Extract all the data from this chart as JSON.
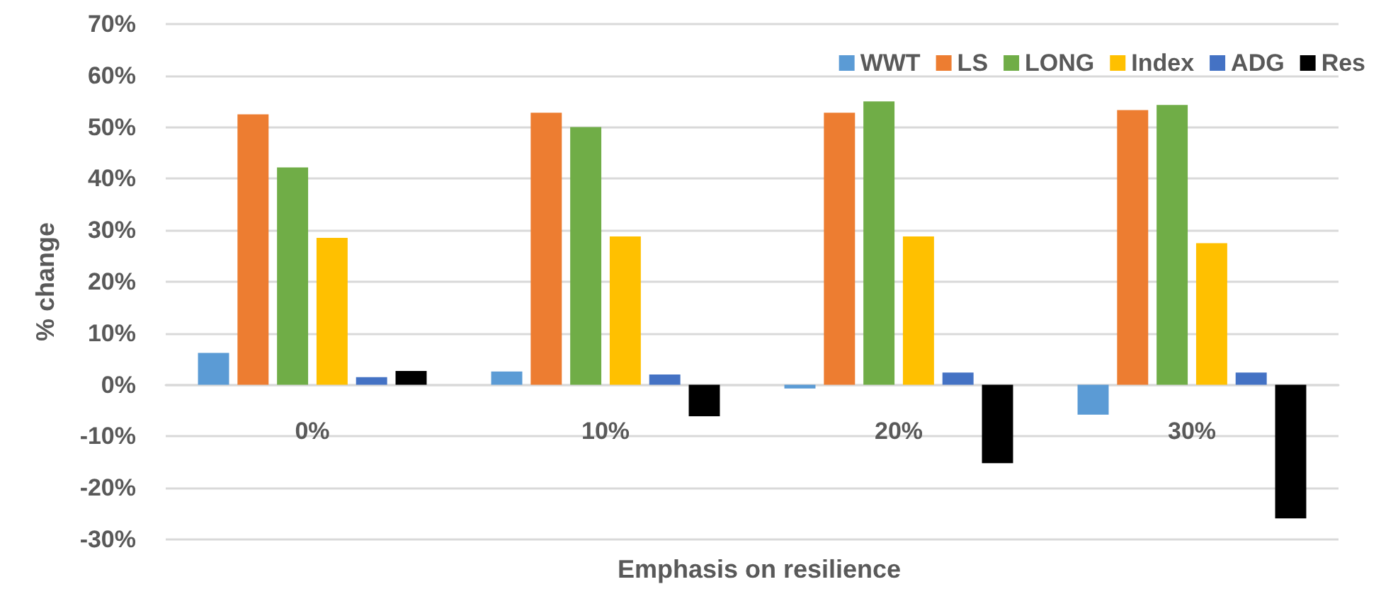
{
  "chart_data": {
    "type": "bar",
    "xlabel": "Emphasis on resilience",
    "ylabel": "% change",
    "categories": [
      "0%",
      "10%",
      "20%",
      "30%"
    ],
    "series": [
      {
        "name": "WWT",
        "color": "#5b9bd5",
        "values": [
          6.2,
          2.6,
          -0.7,
          -5.8
        ]
      },
      {
        "name": "LS",
        "color": "#ed7d31",
        "values": [
          52.5,
          52.8,
          52.8,
          53.3
        ]
      },
      {
        "name": "LONG",
        "color": "#70ad47",
        "values": [
          42.2,
          50.0,
          55.0,
          54.3
        ]
      },
      {
        "name": "Index",
        "color": "#ffc000",
        "values": [
          28.5,
          28.8,
          28.8,
          27.5
        ]
      },
      {
        "name": "ADG",
        "color": "#4472c4",
        "values": [
          1.5,
          2.0,
          2.4,
          2.4
        ]
      },
      {
        "name": "Res",
        "color": "#000000",
        "values": [
          2.7,
          -6.1,
          -15.2,
          -25.9
        ]
      }
    ],
    "ylim": [
      -30,
      70
    ],
    "yticks": [
      {
        "value": -30,
        "label": "-30%"
      },
      {
        "value": -20,
        "label": "-20%"
      },
      {
        "value": -10,
        "label": "-10%"
      },
      {
        "value": 0,
        "label": "0%"
      },
      {
        "value": 10,
        "label": "10%"
      },
      {
        "value": 20,
        "label": "20%"
      },
      {
        "value": 30,
        "label": "30%"
      },
      {
        "value": 40,
        "label": "40%"
      },
      {
        "value": 50,
        "label": "50%"
      },
      {
        "value": 60,
        "label": "60%"
      },
      {
        "value": 70,
        "label": "70%"
      }
    ],
    "grid": "y",
    "legend": "top right"
  }
}
